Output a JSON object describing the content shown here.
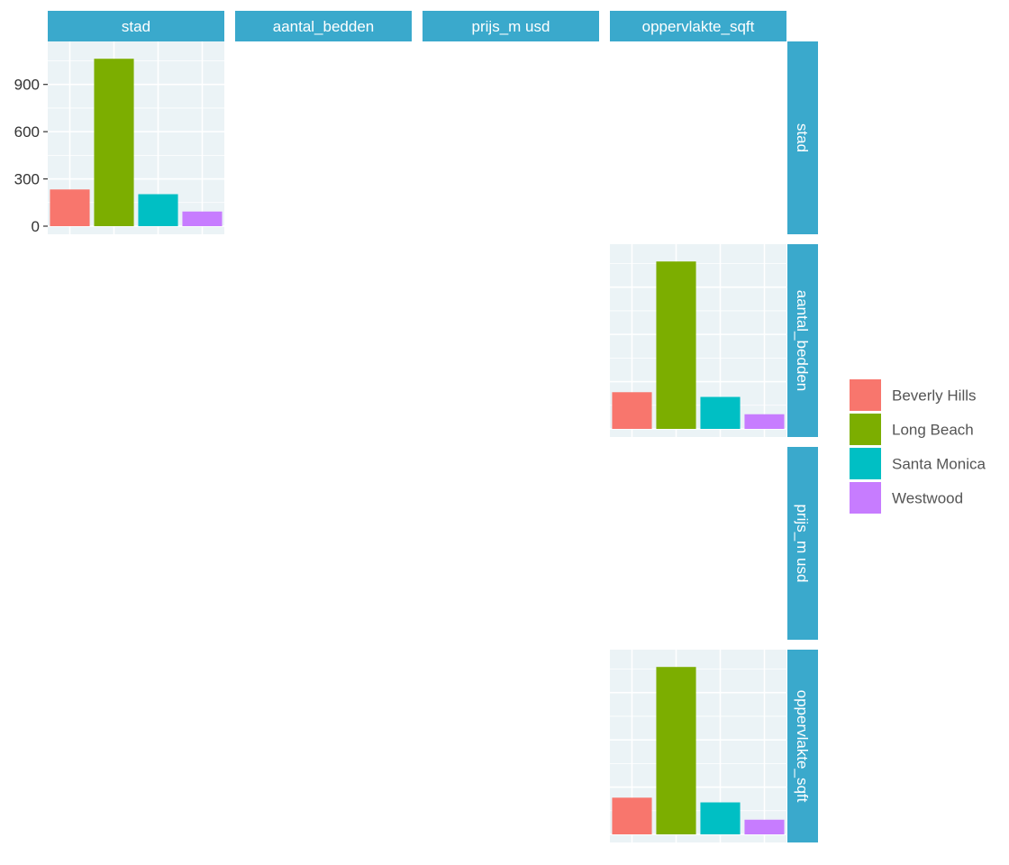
{
  "chart_data": {
    "type": "bar",
    "layout": "pair-matrix",
    "variables": [
      "stad",
      "aantal_bedden",
      "prijs_m usd",
      "oppervlakte_sqft"
    ],
    "categories": [
      "Beverly Hills",
      "Long Beach",
      "Santa Monica",
      "Westwood"
    ],
    "colors": [
      "#F8766D",
      "#7CAE00",
      "#00BFC4",
      "#C77CFF"
    ],
    "ylim": [
      0,
      1150
    ],
    "yticks": [
      0,
      300,
      600,
      900
    ],
    "grid": true,
    "legend_position": "right",
    "panels": [
      {
        "row": "stad",
        "col": "stad",
        "values": [
          233,
          1063,
          203,
          93
        ]
      },
      {
        "row": "aantal_bedden",
        "col": "oppervlakte_sqft",
        "values": [
          233,
          1063,
          203,
          93
        ]
      },
      {
        "row": "oppervlakte_sqft",
        "col": "oppervlakte_sqft",
        "values": [
          233,
          1063,
          203,
          93
        ]
      }
    ]
  }
}
